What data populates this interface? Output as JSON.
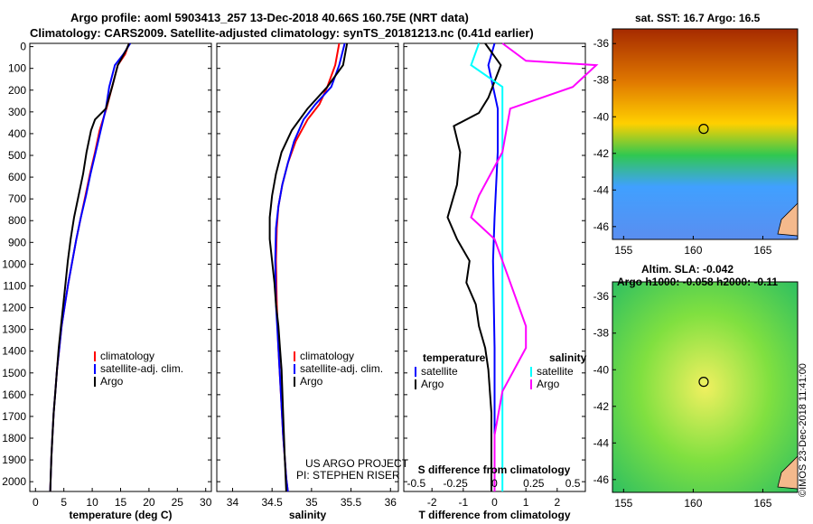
{
  "header": {
    "line1": "Argo profile: aoml 5903413_257 13-Dec-2018 40.66S 160.75E (NRT data)",
    "line2": "Climatology: CARS2009. Satellite-adjusted climatology: synTS_20181213.nc (0.41d earlier)"
  },
  "colors": {
    "climatology": "#ff0000",
    "satellite": "#0000ff",
    "argo": "#000000",
    "salinity_sat": "#00ffff",
    "salinity_argo": "#ff00ff"
  },
  "depth_ticks": [
    "0",
    "100",
    "200",
    "300",
    "400",
    "500",
    "600",
    "700",
    "800",
    "900",
    "1000",
    "1100",
    "1200",
    "1300",
    "1400",
    "1500",
    "1600",
    "1700",
    "1800",
    "1900",
    "2000"
  ],
  "panels": {
    "temperature": {
      "xlabel": "temperature (deg C)",
      "xticks": [
        "0",
        "5",
        "10",
        "15",
        "20",
        "25",
        "30"
      ],
      "legend": [
        "climatology",
        "satellite-adj. clim.",
        "Argo"
      ]
    },
    "salinity": {
      "xlabel": "salinity",
      "xticks": [
        "34",
        "34.5",
        "35",
        "35.5",
        "36"
      ],
      "legend": [
        "climatology",
        "satellite-adj. clim.",
        "Argo"
      ],
      "credit1": "US ARGO PROJECT",
      "credit2": "PI: STEPHEN RISER"
    },
    "difference": {
      "xlabel": "T difference from climatology",
      "xticks": [
        "-2",
        "-1",
        "0",
        "1",
        "2"
      ],
      "s_label": "S difference from climatology",
      "s_ticks": [
        "-0.5",
        "-0.25",
        "0",
        "0.25",
        "0.5"
      ],
      "legend_t_title": "temperature",
      "legend_s_title": "salinity",
      "legend_items": [
        "satellite",
        "Argo"
      ]
    }
  },
  "maps": {
    "sst_title": "sat. SST: 16.7 Argo: 16.5",
    "sla_title1": "Altim. SLA: -0.042",
    "sla_title2": "Argo h1000: -0.058 h2000: -0.11",
    "lat_ticks": [
      "-36",
      "-38",
      "-40",
      "-42",
      "-44",
      "-46"
    ],
    "lon_ticks": [
      "155",
      "160",
      "165"
    ],
    "credit": "©IMOS 23-Dec-2018 11:41:00"
  },
  "chart_data": [
    {
      "type": "line",
      "name": "temperature profile",
      "xlabel": "temperature (deg C)",
      "ylabel": "",
      "xlim": [
        -1,
        31
      ],
      "ylim": [
        2060,
        0
      ],
      "series": [
        {
          "name": "climatology",
          "points": [
            [
              16.5,
              0
            ],
            [
              15.8,
              50
            ],
            [
              14.5,
              100
            ],
            [
              13.5,
              200
            ],
            [
              12.5,
              300
            ],
            [
              11.3,
              400
            ],
            [
              10.5,
              500
            ],
            [
              9.6,
              600
            ],
            [
              8.8,
              700
            ],
            [
              8,
              800
            ],
            [
              7.2,
              900
            ],
            [
              6.5,
              1000
            ],
            [
              5.8,
              1100
            ],
            [
              5.2,
              1200
            ],
            [
              4.6,
              1300
            ],
            [
              4.2,
              1400
            ],
            [
              3.8,
              1500
            ],
            [
              3.5,
              1600
            ],
            [
              3.2,
              1700
            ],
            [
              3,
              1800
            ],
            [
              2.8,
              1900
            ],
            [
              2.6,
              2060
            ]
          ]
        },
        {
          "name": "satellite-adj. clim.",
          "points": [
            [
              16.7,
              0
            ],
            [
              15.5,
              50
            ],
            [
              14,
              100
            ],
            [
              13,
              200
            ],
            [
              12.4,
              300
            ],
            [
              11.5,
              400
            ],
            [
              10.6,
              500
            ],
            [
              9.7,
              600
            ],
            [
              8.9,
              700
            ],
            [
              8,
              800
            ],
            [
              7.2,
              900
            ],
            [
              6.5,
              1000
            ],
            [
              5.8,
              1100
            ],
            [
              5.2,
              1200
            ],
            [
              4.6,
              1300
            ],
            [
              4.2,
              1400
            ],
            [
              3.8,
              1500
            ],
            [
              3.5,
              1600
            ],
            [
              3.2,
              1700
            ],
            [
              3,
              1800
            ],
            [
              2.8,
              1900
            ],
            [
              2.6,
              2060
            ]
          ]
        },
        {
          "name": "Argo",
          "points": [
            [
              16.5,
              0
            ],
            [
              16,
              30
            ],
            [
              14.5,
              100
            ],
            [
              13.5,
              200
            ],
            [
              12.4,
              300
            ],
            [
              10.5,
              350
            ],
            [
              9.8,
              400
            ],
            [
              9,
              500
            ],
            [
              8.4,
              600
            ],
            [
              7.6,
              700
            ],
            [
              6.8,
              800
            ],
            [
              6.2,
              900
            ],
            [
              5.7,
              1000
            ],
            [
              5.3,
              1100
            ],
            [
              4.9,
              1200
            ],
            [
              4.5,
              1300
            ],
            [
              4.1,
              1400
            ],
            [
              3.8,
              1500
            ],
            [
              3.5,
              1600
            ],
            [
              3.2,
              1700
            ],
            [
              3,
              1800
            ],
            [
              2.8,
              1900
            ],
            [
              2.6,
              2060
            ]
          ]
        }
      ]
    },
    {
      "type": "line",
      "name": "salinity profile",
      "xlabel": "salinity",
      "ylabel": "",
      "xlim": [
        33.8,
        36.1
      ],
      "ylim": [
        2060,
        0
      ],
      "series": [
        {
          "name": "climatology",
          "points": [
            [
              35.35,
              0
            ],
            [
              35.3,
              100
            ],
            [
              35.2,
              200
            ],
            [
              35.1,
              280
            ],
            [
              34.95,
              350
            ],
            [
              34.8,
              450
            ],
            [
              34.7,
              550
            ],
            [
              34.63,
              650
            ],
            [
              34.58,
              750
            ],
            [
              34.56,
              850
            ],
            [
              34.55,
              1000
            ],
            [
              34.56,
              1200
            ],
            [
              34.58,
              1400
            ],
            [
              34.61,
              1600
            ],
            [
              34.64,
              1800
            ],
            [
              34.68,
              2000
            ],
            [
              34.7,
              2060
            ]
          ]
        },
        {
          "name": "satellite-adj. clim.",
          "points": [
            [
              35.42,
              0
            ],
            [
              35.35,
              100
            ],
            [
              35.25,
              200
            ],
            [
              35.05,
              280
            ],
            [
              34.9,
              350
            ],
            [
              34.78,
              450
            ],
            [
              34.7,
              550
            ],
            [
              34.63,
              650
            ],
            [
              34.58,
              750
            ],
            [
              34.55,
              850
            ],
            [
              34.54,
              1000
            ],
            [
              34.55,
              1200
            ],
            [
              34.58,
              1400
            ],
            [
              34.61,
              1600
            ],
            [
              34.64,
              1800
            ],
            [
              34.68,
              2000
            ],
            [
              34.7,
              2060
            ]
          ]
        },
        {
          "name": "Argo",
          "points": [
            [
              35.45,
              0
            ],
            [
              35.4,
              100
            ],
            [
              35.2,
              200
            ],
            [
              34.95,
              300
            ],
            [
              34.75,
              400
            ],
            [
              34.62,
              500
            ],
            [
              34.55,
              600
            ],
            [
              34.5,
              700
            ],
            [
              34.47,
              800
            ],
            [
              34.47,
              900
            ],
            [
              34.5,
              1000
            ],
            [
              34.53,
              1100
            ],
            [
              34.55,
              1200
            ],
            [
              34.58,
              1300
            ],
            [
              34.6,
              1400
            ],
            [
              34.62,
              1500
            ],
            [
              34.64,
              1700
            ],
            [
              34.66,
              1900
            ],
            [
              34.68,
              2060
            ]
          ]
        }
      ]
    },
    {
      "type": "line",
      "name": "difference from climatology",
      "xlabel": "T difference from climatology",
      "ylabel": "",
      "xlim": [
        -2.9,
        2.9
      ],
      "ylim": [
        2060,
        0
      ],
      "series": [
        {
          "name": "temperature satellite",
          "points": [
            [
              0,
              0
            ],
            [
              -0.2,
              100
            ],
            [
              0.1,
              300
            ],
            [
              0.1,
              500
            ],
            [
              0,
              800
            ],
            [
              -0.05,
              1000
            ],
            [
              0,
              1400
            ],
            [
              0,
              2060
            ]
          ]
        },
        {
          "name": "temperature Argo",
          "points": [
            [
              -0.3,
              0
            ],
            [
              0.2,
              100
            ],
            [
              -0.2,
              250
            ],
            [
              -0.5,
              320
            ],
            [
              -1.3,
              380
            ],
            [
              -1.1,
              500
            ],
            [
              -1.2,
              650
            ],
            [
              -1.5,
              800
            ],
            [
              -1.2,
              900
            ],
            [
              -0.8,
              1000
            ],
            [
              -0.9,
              1100
            ],
            [
              -0.6,
              1200
            ],
            [
              -0.5,
              1300
            ],
            [
              -0.3,
              1400
            ],
            [
              -0.2,
              1500
            ],
            [
              -0.1,
              1700
            ],
            [
              -0.1,
              2060
            ]
          ]
        },
        {
          "name": "salinity satellite",
          "points": [
            [
              -0.1,
              0
            ],
            [
              -0.15,
              100
            ],
            [
              0.05,
              200
            ],
            [
              0.05,
              400
            ],
            [
              0.05,
              800
            ],
            [
              0.05,
              1200
            ],
            [
              0.05,
              2060
            ]
          ]
        },
        {
          "name": "salinity Argo",
          "points": [
            [
              0.05,
              0
            ],
            [
              0.2,
              80
            ],
            [
              0.65,
              100
            ],
            [
              0.5,
              200
            ],
            [
              0.1,
              300
            ],
            [
              0.05,
              500
            ],
            [
              -0.1,
              700
            ],
            [
              -0.15,
              800
            ],
            [
              0,
              900
            ],
            [
              0.05,
              1000
            ],
            [
              0.15,
              1200
            ],
            [
              0.2,
              1300
            ],
            [
              0.2,
              1400
            ],
            [
              0.05,
              1600
            ],
            [
              0,
              1800
            ],
            [
              0,
              2060
            ]
          ]
        }
      ]
    }
  ]
}
